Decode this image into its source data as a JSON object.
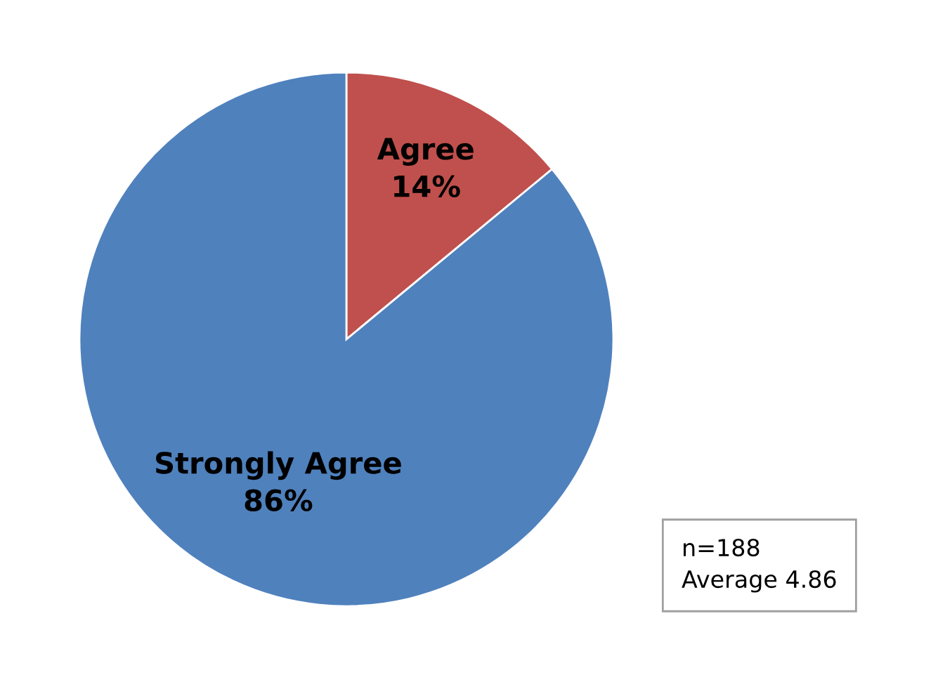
{
  "chart_data": {
    "type": "pie",
    "categories": [
      "Agree",
      "Strongly Agree"
    ],
    "values": [
      14,
      86
    ],
    "colors": [
      "#c0504d",
      "#4f81bd"
    ],
    "value_labels": [
      "14%",
      "86%"
    ],
    "annotations": [
      "n=188",
      "Average 4.86"
    ]
  }
}
